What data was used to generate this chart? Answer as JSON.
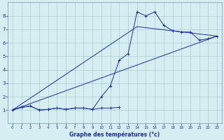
{
  "title": "Graphe des températures (°c)",
  "background_color": "#d6eef2",
  "grid_color": "#aacccc",
  "line_color": "#1a2e9e",
  "xlim": [
    -0.5,
    23.5
  ],
  "ylim": [
    0,
    9
  ],
  "xticks": [
    0,
    1,
    2,
    3,
    4,
    5,
    6,
    7,
    8,
    9,
    10,
    11,
    12,
    13,
    14,
    15,
    16,
    17,
    18,
    19,
    20,
    21,
    22,
    23
  ],
  "yticks": [
    1,
    2,
    3,
    4,
    5,
    6,
    7,
    8
  ],
  "series_zigzag_x": [
    0,
    1,
    2,
    3,
    4,
    5,
    6,
    7,
    8,
    9,
    10,
    11,
    12,
    13,
    14,
    15,
    16,
    17,
    18,
    19,
    20,
    21,
    22,
    23
  ],
  "series_zigzag_y": [
    1.0,
    1.2,
    1.3,
    1.0,
    1.05,
    1.15,
    1.05,
    1.15,
    1.15,
    1.05,
    2.0,
    2.8,
    4.7,
    5.2,
    8.3,
    8.0,
    8.3,
    7.3,
    6.9,
    6.8,
    6.8,
    6.2,
    6.3,
    6.5
  ],
  "series_flat_x": [
    0,
    1,
    2,
    3,
    4,
    5,
    6,
    7,
    8,
    9,
    10,
    11,
    12
  ],
  "series_flat_y": [
    1.0,
    1.2,
    1.3,
    1.0,
    1.05,
    1.15,
    1.05,
    1.15,
    1.15,
    1.05,
    1.15,
    1.15,
    1.2
  ],
  "series_line1_x": [
    0,
    23
  ],
  "series_line1_y": [
    1.0,
    6.5
  ],
  "series_line2_x": [
    0,
    14,
    23
  ],
  "series_line2_y": [
    1.0,
    7.2,
    6.5
  ]
}
